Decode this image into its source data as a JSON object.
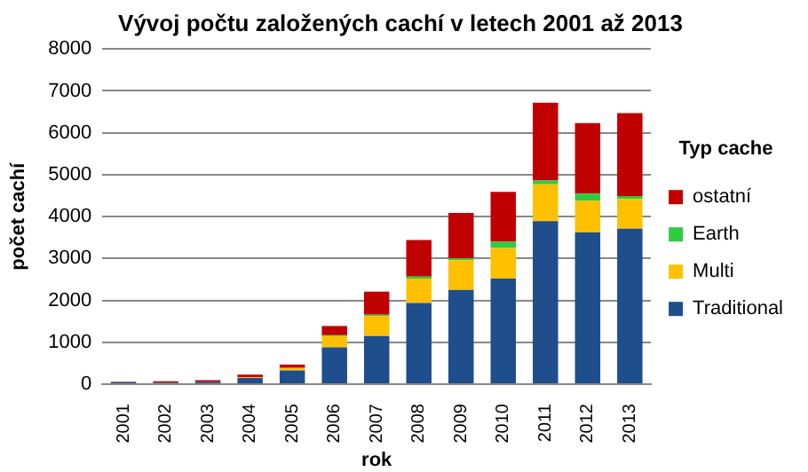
{
  "chart_data": {
    "type": "bar",
    "title": "Vývoj počtu založených cachí v letech 2001 až 2013",
    "xlabel": "rok",
    "ylabel": "počet cachí",
    "legend_title": "Typ cache",
    "categories": [
      "2001",
      "2002",
      "2003",
      "2004",
      "2005",
      "2006",
      "2007",
      "2008",
      "2009",
      "2010",
      "2011",
      "2012",
      "2013"
    ],
    "stacked": true,
    "ylim": [
      0,
      8000
    ],
    "yticks": [
      0,
      1000,
      2000,
      3000,
      4000,
      5000,
      6000,
      7000,
      8000
    ],
    "grid": "y",
    "legend": "right",
    "series": [
      {
        "name": "Traditional",
        "color": "#1f4e8c",
        "values": [
          50,
          40,
          60,
          150,
          330,
          880,
          1150,
          1940,
          2250,
          2520,
          3890,
          3620,
          3710
        ]
      },
      {
        "name": "Multi",
        "color": "#ffc000",
        "values": [
          0,
          0,
          0,
          20,
          60,
          270,
          480,
          580,
          710,
          730,
          880,
          760,
          710
        ]
      },
      {
        "name": "Earth",
        "color": "#2ecc40",
        "values": [
          0,
          0,
          0,
          0,
          0,
          20,
          30,
          50,
          50,
          150,
          90,
          170,
          70
        ]
      },
      {
        "name": "ostatní",
        "color": "#c00000",
        "values": [
          10,
          30,
          40,
          60,
          80,
          220,
          550,
          870,
          1080,
          1190,
          1860,
          1680,
          1980
        ]
      }
    ]
  }
}
